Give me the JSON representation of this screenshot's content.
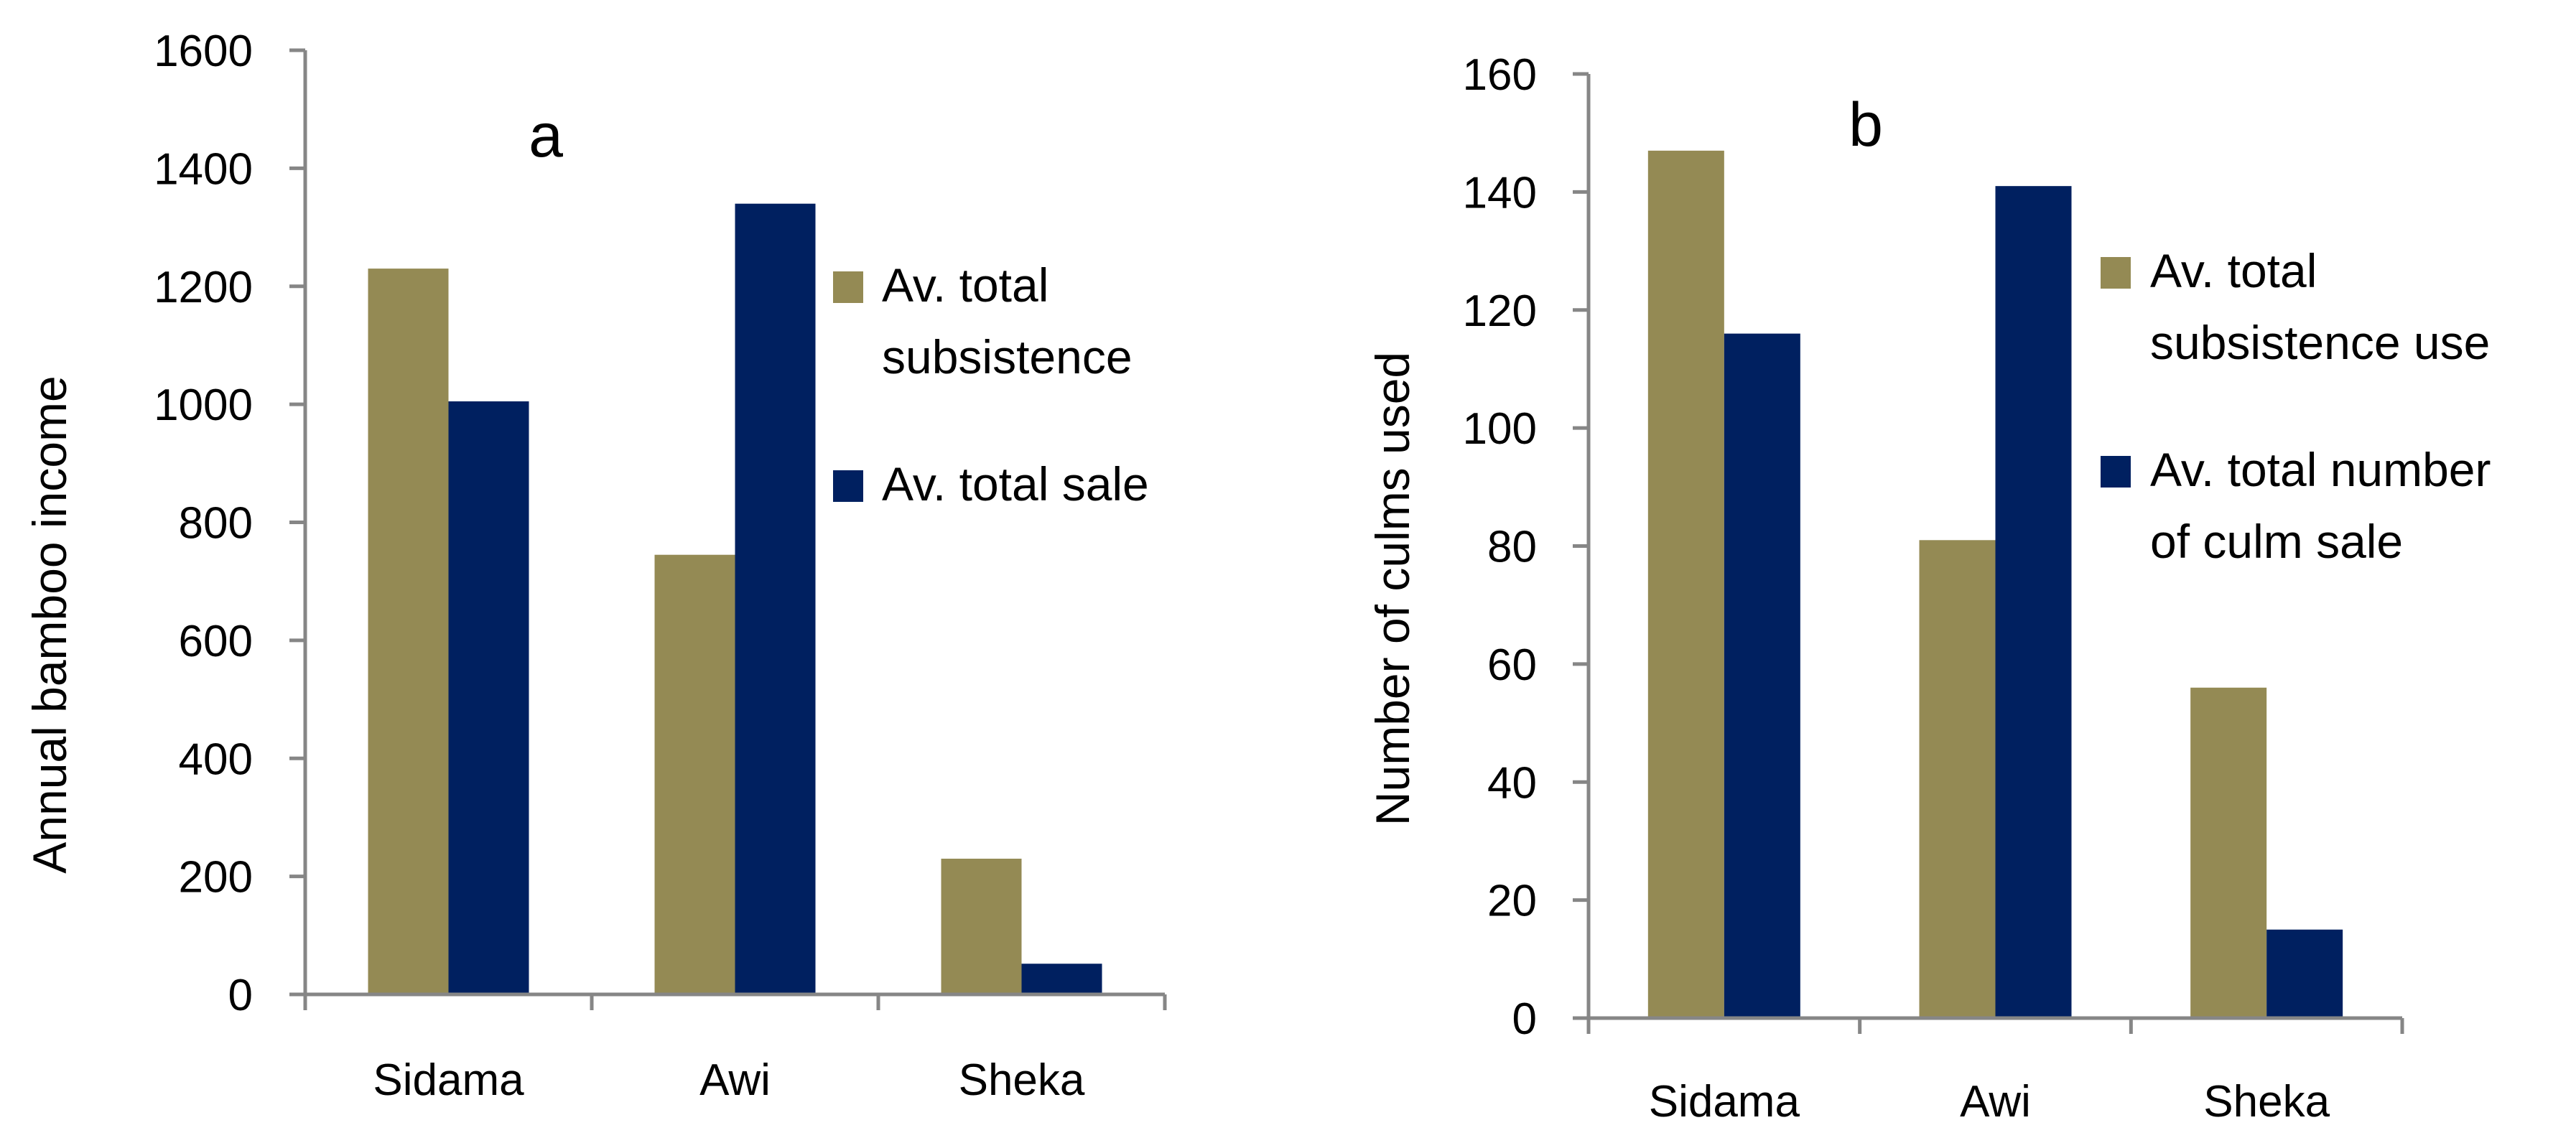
{
  "chart_data": [
    {
      "type": "bar",
      "panel_label": "a",
      "categories": [
        "Sidama",
        "Awi",
        "Sheka"
      ],
      "ylabel": "Annual bamboo  income",
      "xlabel": "",
      "ylim": [
        0,
        1600
      ],
      "yticks": [
        "0",
        "200",
        "400",
        "600",
        "800",
        "1000",
        "1200",
        "1400",
        "1600"
      ],
      "legend_position": "right",
      "series": [
        {
          "name": "Av. total subsistence",
          "legend_lines": [
            "Av. total",
            "subsistence"
          ],
          "color": "#948A54",
          "values": [
            1230,
            745,
            230
          ]
        },
        {
          "name": "Av. total sale",
          "legend_lines": [
            "Av. total sale"
          ],
          "color": "#002060",
          "values": [
            1005,
            1340,
            52
          ]
        }
      ]
    },
    {
      "type": "bar",
      "panel_label": "b",
      "categories": [
        "Sidama",
        "Awi",
        "Sheka"
      ],
      "ylabel": "Number of culms  used",
      "xlabel": "",
      "ylim": [
        0,
        160
      ],
      "yticks": [
        "0",
        "20",
        "40",
        "60",
        "80",
        "100",
        "120",
        "140",
        "160"
      ],
      "legend_position": "right",
      "series": [
        {
          "name": "Av. total subsistence use",
          "legend_lines": [
            "Av. total",
            "subsistence use"
          ],
          "color": "#948A54",
          "values": [
            147,
            81,
            56
          ]
        },
        {
          "name": "Av. total number of culm sale",
          "legend_lines": [
            "Av. total number",
            "of culm sale"
          ],
          "color": "#002060",
          "values": [
            116,
            141,
            15
          ]
        }
      ]
    }
  ]
}
